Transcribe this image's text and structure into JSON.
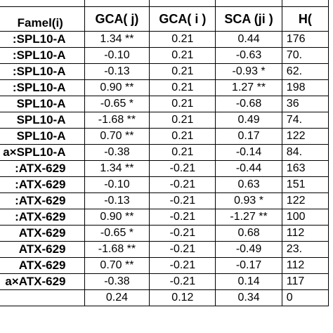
{
  "table": {
    "headers": {
      "name": "Famel(i)",
      "gca_j": "GCA( j)",
      "gca_i": "GCA( i )",
      "sca": "SCA (ji )",
      "h": "H("
    },
    "rows": [
      {
        "name": ":SPL10-A",
        "gca_j": "1.34 **",
        "gca_i": "0.21",
        "sca": "0.44",
        "h": "176"
      },
      {
        "name": ":SPL10-A",
        "gca_j": "-0.10",
        "gca_i": "0.21",
        "sca": "-0.63",
        "h": "70."
      },
      {
        "name": ":SPL10-A",
        "gca_j": "-0.13",
        "gca_i": "0.21",
        "sca": "-0.93 *",
        "h": "62."
      },
      {
        "name": ":SPL10-A",
        "gca_j": "0.90 **",
        "gca_i": "0.21",
        "sca": "1.27 **",
        "h": "198"
      },
      {
        "name": "SPL10-A",
        "gca_j": "-0.65 *",
        "gca_i": "0.21",
        "sca": "-0.68",
        "h": "36"
      },
      {
        "name": "SPL10-A",
        "gca_j": "-1.68 **",
        "gca_i": "0.21",
        "sca": "0.49",
        "h": "74."
      },
      {
        "name": "SPL10-A",
        "gca_j": "0.70 **",
        "gca_i": "0.21",
        "sca": "0.17",
        "h": "122"
      },
      {
        "name": "a×SPL10-A",
        "gca_j": "-0.38",
        "gca_i": "0.21",
        "sca": "-0.14",
        "h": "84."
      },
      {
        "name": ":ATX-629",
        "gca_j": "1.34 **",
        "gca_i": "-0.21",
        "sca": "-0.44",
        "h": "163"
      },
      {
        "name": ":ATX-629",
        "gca_j": "-0.10",
        "gca_i": "-0.21",
        "sca": "0.63",
        "h": "151"
      },
      {
        "name": ":ATX-629",
        "gca_j": "-0.13",
        "gca_i": "-0.21",
        "sca": "0.93 *",
        "h": "122"
      },
      {
        "name": ":ATX-629",
        "gca_j": "0.90 **",
        "gca_i": "-0.21",
        "sca": "-1.27 **",
        "h": "100"
      },
      {
        "name": "ATX-629",
        "gca_j": "-0.65 *",
        "gca_i": "-0.21",
        "sca": "0.68",
        "h": "112"
      },
      {
        "name": "ATX-629",
        "gca_j": "-1.68 **",
        "gca_i": "-0.21",
        "sca": "-0.49",
        "h": "23."
      },
      {
        "name": "ATX-629",
        "gca_j": "0.70 **",
        "gca_i": "-0.21",
        "sca": "-0.17",
        "h": "112"
      },
      {
        "name": "a×ATX-629",
        "gca_j": "-0.38",
        "gca_i": "-0.21",
        "sca": "0.14",
        "h": "117"
      }
    ],
    "footer": {
      "name": "",
      "gca_j": "0.24",
      "gca_i": "0.12",
      "sca": "0.34",
      "h": "0"
    }
  }
}
